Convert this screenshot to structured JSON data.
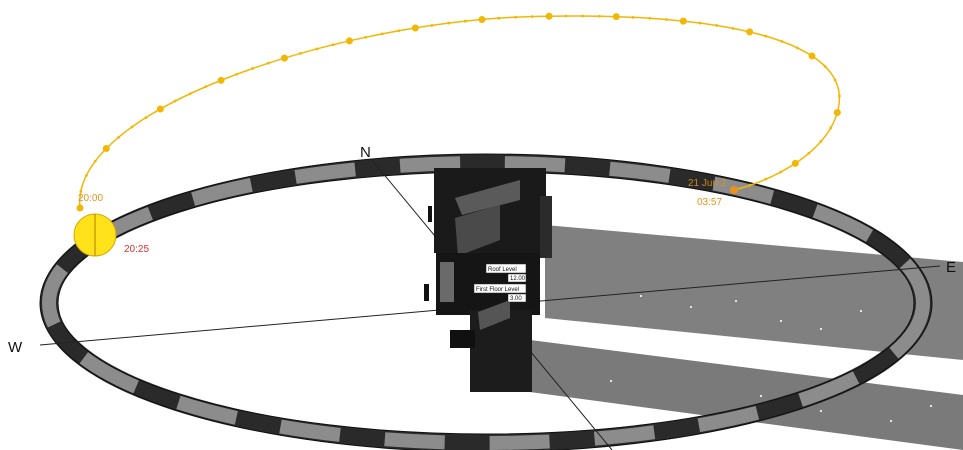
{
  "compass": {
    "north": "N",
    "east": "E",
    "west": "W"
  },
  "sun_path": {
    "sunrise_time": "03:57",
    "sunset_time": "20:25",
    "hour_label": "20:00",
    "sunrise_marker_text": "21 Jun 2"
  },
  "building": {
    "upper_level_name": "Roof Level",
    "upper_level_elevation": "12.00",
    "lower_level_name": "First Floor Level",
    "lower_level_elevation": "3.00"
  },
  "colors": {
    "sun_path": "#f2b705",
    "sun_disc": "#ffe21a",
    "time_text": "#e8941a",
    "sunset_text": "#e03030",
    "ring_dark": "#2a2a2a",
    "ring_light": "#8c8c8c",
    "shadow": "#808080",
    "building": "#1a1a1a"
  }
}
